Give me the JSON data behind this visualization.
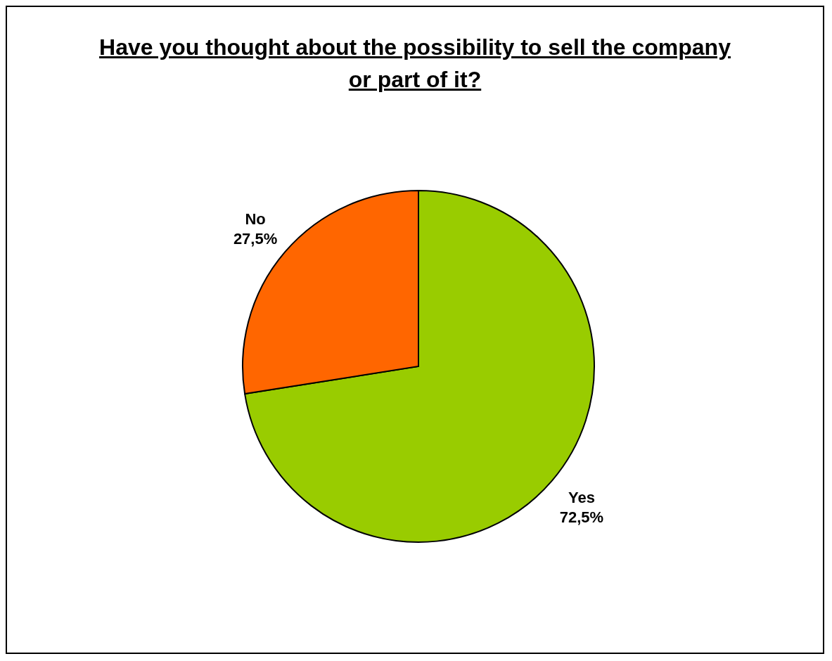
{
  "chart_data": {
    "type": "pie",
    "title": "Have you thought about the possibility to sell the company or part of it? ",
    "categories": [
      "Yes",
      "No"
    ],
    "values": [
      72.5,
      27.5
    ],
    "value_labels": [
      "72,5%",
      "27,5%"
    ],
    "colors": [
      "#99cc00",
      "#ff6600"
    ]
  }
}
